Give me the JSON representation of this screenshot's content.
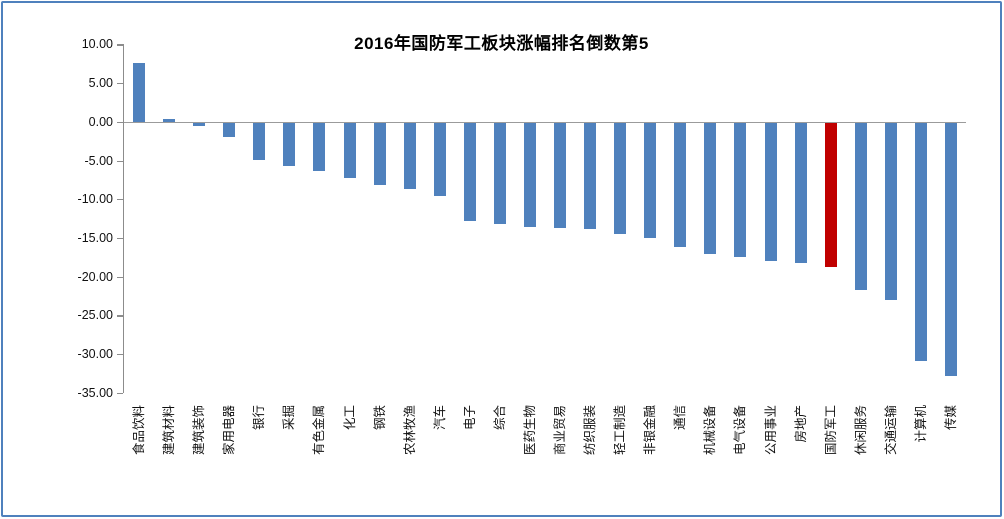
{
  "chart_data": {
    "type": "bar",
    "title": "2016年国防军工板块涨幅排名倒数第5",
    "categories": [
      "食品饮料",
      "建筑材料",
      "建筑装饰",
      "家用电器",
      "银行",
      "采掘",
      "有色金属",
      "化工",
      "钢铁",
      "农林牧渔",
      "汽车",
      "电子",
      "综合",
      "医药生物",
      "商业贸易",
      "纺织服装",
      "轻工制造",
      "非银金融",
      "通信",
      "机械设备",
      "电气设备",
      "公用事业",
      "房地产",
      "国防军工",
      "休闲服务",
      "交通运输",
      "计算机",
      "传媒"
    ],
    "values": [
      7.6,
      0.3,
      -0.5,
      -2.0,
      -4.9,
      -5.7,
      -6.3,
      -7.2,
      -8.2,
      -8.7,
      -9.6,
      -12.8,
      -13.2,
      -13.6,
      -13.7,
      -13.8,
      -14.5,
      -15.0,
      -16.2,
      -17.1,
      -17.4,
      -18.0,
      -18.2,
      -18.7,
      -21.7,
      -23.0,
      -30.9,
      -32.8
    ],
    "highlight_category": "国防军工",
    "unit": "%",
    "xlabel": "",
    "ylabel": "",
    "ylim": [
      -35,
      10
    ],
    "y_tick_step": 5,
    "y_tick_labels": [
      "10.00",
      "5.00",
      "0.00",
      "-5.00",
      "-10.00",
      "-15.00",
      "-20.00",
      "-25.00",
      "-30.00",
      "-35.00"
    ],
    "grid": false,
    "legend_position": "none",
    "colors": {
      "bar": "#4F81BD",
      "highlight": "#C00000",
      "axis": "#8C8C8C",
      "frame": "#4F81BD",
      "title_text": "#000000",
      "label_text": "#111111",
      "background": "#FFFFFF"
    }
  }
}
